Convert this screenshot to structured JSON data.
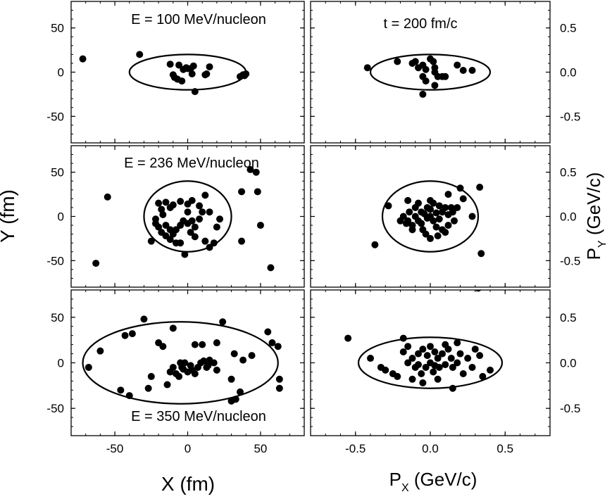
{
  "figure": {
    "ylabel_left": "Y (fm)",
    "xlabel_left": "X (fm)",
    "ylabel_right_main": "P",
    "ylabel_right_sub": "Y",
    "ylabel_right_unit": " (GeV/c)",
    "xlabel_right_main": "P",
    "xlabel_right_sub": "X",
    "xlabel_right_unit": " (GeV/c)"
  },
  "chart_data": [
    {
      "type": "scatter",
      "column": "left",
      "row": 0,
      "annotation": "E = 100 MeV/nucleon",
      "xlim": [
        -80,
        80
      ],
      "ylim": [
        -80,
        80
      ],
      "xticks": [
        -50,
        0,
        50
      ],
      "yticks": [
        -50,
        0,
        50
      ],
      "ellipse": {
        "cx": 0,
        "cy": 0,
        "rx": 40,
        "ry": 20
      },
      "points": [
        [
          -72,
          15
        ],
        [
          -33,
          20
        ],
        [
          -12,
          9
        ],
        [
          -10,
          -3
        ],
        [
          -7,
          -8
        ],
        [
          -4,
          -10
        ],
        [
          -1,
          5
        ],
        [
          2,
          4
        ],
        [
          4,
          7
        ],
        [
          -3,
          3
        ],
        [
          0,
          4
        ],
        [
          3,
          -2
        ],
        [
          13,
          -2
        ],
        [
          12,
          -3
        ],
        [
          15,
          6
        ],
        [
          5,
          -22
        ],
        [
          36,
          -5
        ],
        [
          38,
          -3
        ],
        [
          39,
          -4
        ],
        [
          40,
          -2
        ],
        [
          -9,
          -6
        ],
        [
          -6,
          8
        ]
      ]
    },
    {
      "type": "scatter",
      "column": "right",
      "row": 0,
      "annotation": "t = 200 fm/c",
      "xlim": [
        -0.8,
        0.8
      ],
      "ylim": [
        -0.8,
        0.8
      ],
      "xticks": [
        -0.5,
        0.0,
        0.5
      ],
      "yticks": [
        -0.5,
        0.0,
        0.5
      ],
      "ellipse": {
        "cx": 0,
        "cy": 0,
        "rx": 0.4,
        "ry": 0.2
      },
      "points": [
        [
          -0.42,
          0.05
        ],
        [
          -0.22,
          0.12
        ],
        [
          -0.1,
          0.12
        ],
        [
          -0.08,
          0.05
        ],
        [
          -0.05,
          0.08
        ],
        [
          -0.03,
          0.03
        ],
        [
          0.0,
          0.15
        ],
        [
          0.02,
          0.12
        ],
        [
          0.03,
          0.05
        ],
        [
          0.05,
          -0.05
        ],
        [
          0.08,
          -0.05
        ],
        [
          0.1,
          -0.05
        ],
        [
          -0.05,
          -0.05
        ],
        [
          -0.03,
          -0.1
        ],
        [
          0.03,
          -0.15
        ],
        [
          -0.05,
          -0.25
        ],
        [
          0.18,
          0.08
        ],
        [
          0.22,
          0.02
        ],
        [
          0.28,
          0.02
        ],
        [
          0.03,
          0.0
        ],
        [
          -0.12,
          0.1
        ]
      ]
    },
    {
      "type": "scatter",
      "column": "left",
      "row": 1,
      "annotation": "E = 236 MeV/nucleon",
      "xlim": [
        -80,
        80
      ],
      "ylim": [
        -80,
        80
      ],
      "xticks": [
        -50,
        0,
        50
      ],
      "yticks": [
        -50,
        0,
        50
      ],
      "ellipse": {
        "cx": 0,
        "cy": 0,
        "rx": 30,
        "ry": 40
      },
      "points": [
        [
          -55,
          22
        ],
        [
          -63,
          -53
        ],
        [
          43,
          53
        ],
        [
          47,
          50
        ],
        [
          48,
          28
        ],
        [
          37,
          28
        ],
        [
          50,
          -10
        ],
        [
          57,
          -58
        ],
        [
          37,
          -28
        ],
        [
          -20,
          15
        ],
        [
          -18,
          8
        ],
        [
          -15,
          16
        ],
        [
          -12,
          10
        ],
        [
          -10,
          13
        ],
        [
          -5,
          17
        ],
        [
          0,
          14
        ],
        [
          3,
          18
        ],
        [
          8,
          12
        ],
        [
          12,
          24
        ],
        [
          -22,
          -3
        ],
        [
          -20,
          -12
        ],
        [
          -18,
          -18
        ],
        [
          -15,
          -22
        ],
        [
          -12,
          -26
        ],
        [
          -10,
          -20
        ],
        [
          -8,
          -15
        ],
        [
          -5,
          -10
        ],
        [
          0,
          -8
        ],
        [
          3,
          -5
        ],
        [
          5,
          -12
        ],
        [
          8,
          -3
        ],
        [
          10,
          5
        ],
        [
          12,
          -28
        ],
        [
          15,
          -35
        ],
        [
          18,
          -30
        ],
        [
          20,
          -12
        ],
        [
          22,
          -3
        ],
        [
          -2,
          -43
        ],
        [
          -15,
          -10
        ],
        [
          -8,
          -30
        ],
        [
          5,
          -23
        ],
        [
          -3,
          -5
        ],
        [
          0,
          5
        ],
        [
          -25,
          -28
        ],
        [
          -22,
          -8
        ],
        [
          -12,
          -15
        ],
        [
          -5,
          -30
        ],
        [
          15,
          5
        ],
        [
          2,
          -18
        ],
        [
          -17,
          2
        ]
      ]
    },
    {
      "type": "scatter",
      "column": "right",
      "row": 1,
      "annotation": "",
      "xlim": [
        -0.8,
        0.8
      ],
      "ylim": [
        -0.8,
        0.8
      ],
      "xticks": [
        -0.5,
        0.0,
        0.5
      ],
      "yticks": [
        -0.5,
        0.0,
        0.5
      ],
      "ellipse": {
        "cx": 0,
        "cy": 0,
        "rx": 0.32,
        "ry": 0.4
      },
      "points": [
        [
          -0.37,
          -0.32
        ],
        [
          -0.28,
          0.12
        ],
        [
          0.33,
          0.33
        ],
        [
          0.34,
          -0.42
        ],
        [
          0.28,
          0.0
        ],
        [
          0.2,
          0.32
        ],
        [
          0.22,
          0.2
        ],
        [
          0.12,
          0.25
        ],
        [
          -0.15,
          0.18
        ],
        [
          -0.2,
          -0.05
        ],
        [
          -0.18,
          0.0
        ],
        [
          -0.15,
          -0.05
        ],
        [
          -0.12,
          -0.1
        ],
        [
          -0.1,
          0.1
        ],
        [
          -0.1,
          0.0
        ],
        [
          -0.08,
          -0.05
        ],
        [
          -0.06,
          0.05
        ],
        [
          -0.04,
          0.03
        ],
        [
          -0.02,
          -0.02
        ],
        [
          0.0,
          0.0
        ],
        [
          0.0,
          0.08
        ],
        [
          0.02,
          -0.05
        ],
        [
          0.04,
          0.04
        ],
        [
          0.06,
          -0.03
        ],
        [
          0.08,
          0.05
        ],
        [
          0.1,
          0.1
        ],
        [
          0.12,
          0.02
        ],
        [
          0.14,
          0.1
        ],
        [
          0.16,
          -0.05
        ],
        [
          0.18,
          0.1
        ],
        [
          -0.05,
          -0.15
        ],
        [
          -0.03,
          -0.2
        ],
        [
          0.0,
          -0.25
        ],
        [
          0.05,
          -0.22
        ],
        [
          0.08,
          -0.15
        ],
        [
          0.1,
          -0.18
        ],
        [
          0.12,
          -0.1
        ],
        [
          -0.14,
          0.05
        ],
        [
          -0.16,
          -0.08
        ],
        [
          -0.06,
          -0.08
        ],
        [
          -0.02,
          0.1
        ],
        [
          0.02,
          0.15
        ],
        [
          0.04,
          -0.12
        ],
        [
          0.0,
          0.18
        ],
        [
          -0.08,
          0.15
        ],
        [
          0.06,
          0.12
        ],
        [
          0.15,
          0.05
        ],
        [
          -0.12,
          -0.15
        ]
      ]
    },
    {
      "type": "scatter",
      "column": "left",
      "row": 2,
      "annotation": "E = 350 MeV/nucleon",
      "xlim": [
        -80,
        80
      ],
      "ylim": [
        -80,
        80
      ],
      "xticks": [
        -50,
        0,
        50
      ],
      "yticks": [
        -50,
        0,
        50
      ],
      "ellipse": {
        "cx": -5,
        "cy": 0,
        "rx": 67,
        "ry": 45
      },
      "points": [
        [
          -68,
          -5
        ],
        [
          -60,
          13
        ],
        [
          -46,
          -30
        ],
        [
          -40,
          -36
        ],
        [
          -43,
          30
        ],
        [
          -38,
          32
        ],
        [
          -30,
          48
        ],
        [
          -27,
          -28
        ],
        [
          -20,
          22
        ],
        [
          -17,
          18
        ],
        [
          -14,
          -24
        ],
        [
          -12,
          -10
        ],
        [
          -10,
          -5
        ],
        [
          -8,
          -12
        ],
        [
          -6,
          -15
        ],
        [
          -4,
          -5
        ],
        [
          -2,
          0
        ],
        [
          0,
          -10
        ],
        [
          2,
          -3
        ],
        [
          3,
          -8
        ],
        [
          5,
          -12
        ],
        [
          7,
          -5
        ],
        [
          9,
          0
        ],
        [
          11,
          2
        ],
        [
          13,
          -5
        ],
        [
          15,
          3
        ],
        [
          18,
          0
        ],
        [
          20,
          -8
        ],
        [
          10,
          20
        ],
        [
          20,
          22
        ],
        [
          24,
          45
        ],
        [
          30,
          -18
        ],
        [
          32,
          10
        ],
        [
          30,
          -42
        ],
        [
          33,
          -40
        ],
        [
          36,
          -32
        ],
        [
          38,
          3
        ],
        [
          44,
          8
        ],
        [
          55,
          34
        ],
        [
          58,
          22
        ],
        [
          62,
          18
        ],
        [
          63,
          -28
        ],
        [
          63,
          -18
        ],
        [
          -10,
          38
        ],
        [
          5,
          20
        ],
        [
          -5,
          0
        ],
        [
          -3,
          -7
        ],
        [
          14,
          -3
        ],
        [
          -25,
          -15
        ]
      ]
    },
    {
      "type": "scatter",
      "column": "right",
      "row": 2,
      "annotation": "",
      "xlim": [
        -0.8,
        0.8
      ],
      "ylim": [
        -0.8,
        0.8
      ],
      "xticks": [
        -0.5,
        0.0,
        0.5
      ],
      "yticks": [
        -0.5,
        0.0,
        0.5
      ],
      "ellipse": {
        "cx": 0,
        "cy": 0,
        "rx": 0.48,
        "ry": 0.28
      },
      "points": [
        [
          -0.55,
          0.27
        ],
        [
          0.32,
          0.82
        ],
        [
          -0.4,
          0.05
        ],
        [
          -0.33,
          -0.05
        ],
        [
          -0.3,
          -0.08
        ],
        [
          -0.22,
          -0.15
        ],
        [
          -0.18,
          0.12
        ],
        [
          -0.15,
          0.0
        ],
        [
          -0.12,
          0.05
        ],
        [
          -0.1,
          -0.05
        ],
        [
          -0.08,
          0.1
        ],
        [
          -0.06,
          -0.12
        ],
        [
          -0.05,
          0.15
        ],
        [
          -0.03,
          -0.05
        ],
        [
          -0.02,
          0.08
        ],
        [
          0.0,
          0.0
        ],
        [
          0.02,
          -0.1
        ],
        [
          0.03,
          0.12
        ],
        [
          0.05,
          0.05
        ],
        [
          0.06,
          -0.05
        ],
        [
          0.08,
          0.1
        ],
        [
          0.1,
          -0.02
        ],
        [
          0.12,
          0.15
        ],
        [
          0.14,
          0.05
        ],
        [
          0.15,
          -0.05
        ],
        [
          0.18,
          0.0
        ],
        [
          0.2,
          0.1
        ],
        [
          0.22,
          -0.12
        ],
        [
          0.25,
          0.05
        ],
        [
          0.28,
          -0.05
        ],
        [
          0.3,
          0.15
        ],
        [
          0.33,
          0.08
        ],
        [
          0.35,
          -0.15
        ],
        [
          0.4,
          -0.08
        ],
        [
          0.15,
          -0.28
        ],
        [
          0.05,
          -0.18
        ],
        [
          -0.05,
          -0.22
        ],
        [
          -0.12,
          -0.18
        ],
        [
          -0.15,
          0.18
        ],
        [
          -0.18,
          0.27
        ],
        [
          0.0,
          0.18
        ],
        [
          0.1,
          0.2
        ],
        [
          0.18,
          0.22
        ],
        [
          -0.25,
          -0.12
        ],
        [
          -0.08,
          -0.02
        ],
        [
          0.03,
          -0.03
        ]
      ]
    }
  ]
}
